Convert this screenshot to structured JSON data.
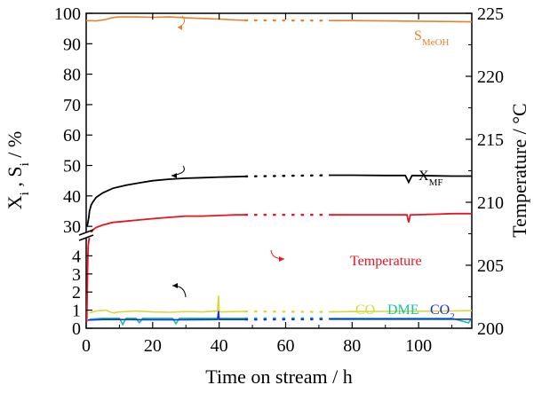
{
  "chart_data": {
    "type": "line",
    "xlabel": "Time on stream / h",
    "ylabel_left": {
      "base": "X",
      "sub1": "i",
      "sep": " , ",
      "base2": "S",
      "sub2": "i",
      "unit": " / %"
    },
    "ylabel_right": "Temperature / °C",
    "x_ticks": [
      "0",
      "20",
      "40",
      "60",
      "80",
      "100"
    ],
    "x_range": [
      0,
      116
    ],
    "left_axis_upper": {
      "range": [
        28,
        100
      ],
      "ticks": [
        "30",
        "40",
        "50",
        "60",
        "70",
        "80",
        "90",
        "100"
      ]
    },
    "left_axis_lower": {
      "range": [
        0,
        5
      ],
      "ticks": [
        "0",
        "1",
        "2",
        "3",
        "4"
      ]
    },
    "right_axis": {
      "range": [
        200,
        225
      ],
      "ticks": [
        "200",
        "205",
        "210",
        "215",
        "220",
        "225"
      ]
    },
    "gap_x": [
      48,
      73
    ],
    "series": [
      {
        "name_base": "S",
        "name_sub": "MeOH",
        "color": "#E8822A",
        "axis": "left",
        "x": [
          0,
          1,
          3,
          6,
          8,
          10,
          15,
          20,
          25,
          30,
          35,
          40,
          45,
          48,
          73,
          80,
          90,
          100,
          110,
          116
        ],
        "y": [
          97.5,
          97.6,
          97.5,
          98.0,
          98.6,
          98.8,
          98.8,
          98.7,
          98.8,
          98.5,
          98.3,
          98.1,
          97.8,
          97.7,
          97.6,
          97.6,
          97.5,
          97.4,
          97.3,
          97.2
        ]
      },
      {
        "name_base": "X",
        "name_sub": "MF",
        "color": "#000000",
        "axis": "left",
        "x": [
          0.3,
          0.8,
          1,
          1.5,
          2,
          3,
          5,
          8,
          12,
          16,
          20,
          25,
          30,
          35,
          40,
          45,
          48,
          73,
          80,
          90,
          96,
          97,
          98,
          105,
          110,
          116
        ],
        "y": [
          30,
          33,
          35,
          37,
          38,
          39.5,
          41,
          42.5,
          43.5,
          44.3,
          45,
          45.5,
          45.8,
          46,
          46.2,
          46.3,
          46.4,
          46.8,
          46.8,
          46.7,
          46.7,
          44.5,
          46.7,
          46.6,
          46.5,
          46.5
        ]
      },
      {
        "name_base": "Temperature",
        "name_sub": "",
        "color": "#E8141E",
        "axis": "right",
        "x": [
          0.2,
          0.4,
          0.6,
          1,
          1.5,
          2,
          3,
          5,
          8,
          12,
          16,
          20,
          25,
          30,
          35,
          40,
          45,
          48,
          73,
          80,
          90,
          96.5,
          97,
          97.5,
          105,
          110,
          116
        ],
        "y": [
          200.5,
          204.5,
          206.5,
          207.3,
          207.6,
          207.8,
          208.0,
          208.2,
          208.4,
          208.5,
          208.6,
          208.7,
          208.8,
          208.9,
          208.9,
          208.95,
          209.0,
          209.0,
          209.0,
          209.0,
          209.0,
          209.0,
          208.4,
          209.0,
          209.05,
          209.1,
          209.1
        ]
      },
      {
        "name_base": "CO",
        "name_sub": "",
        "color": "#D8D83A",
        "axis": "left",
        "x": [
          1,
          3,
          6,
          8,
          10,
          15,
          20,
          25,
          30,
          35,
          39.5,
          39.8,
          40,
          40.3,
          44,
          48,
          73,
          80,
          90,
          100,
          110,
          116
        ],
        "y": [
          0.85,
          0.95,
          1.0,
          0.85,
          0.9,
          0.95,
          0.9,
          0.88,
          0.92,
          0.9,
          0.95,
          1.8,
          0.95,
          0.9,
          0.92,
          0.93,
          0.9,
          0.92,
          0.93,
          0.94,
          0.95,
          0.97
        ]
      },
      {
        "name_base": "DME",
        "name_sub": "",
        "color": "#19C2A0",
        "axis": "left",
        "x": [
          1,
          5,
          10,
          11,
          12,
          15,
          16,
          17,
          20,
          26,
          27,
          28,
          30,
          35,
          40,
          45,
          48,
          73,
          80,
          90,
          100,
          110,
          115,
          116
        ],
        "y": [
          0.5,
          0.55,
          0.55,
          0.2,
          0.55,
          0.55,
          0.3,
          0.55,
          0.55,
          0.55,
          0.25,
          0.55,
          0.55,
          0.55,
          0.55,
          0.55,
          0.55,
          0.55,
          0.55,
          0.55,
          0.55,
          0.55,
          0.3,
          0.55
        ]
      },
      {
        "name_base": "CO",
        "name_sub": "2",
        "color": "#1A2FE0",
        "axis": "left",
        "x": [
          0.5,
          5,
          10,
          20,
          30,
          39.5,
          39.8,
          40,
          40.3,
          48,
          73,
          80,
          90,
          100,
          110,
          116
        ],
        "y": [
          0.45,
          0.48,
          0.48,
          0.47,
          0.47,
          0.48,
          0.95,
          0.48,
          0.48,
          0.48,
          0.5,
          0.5,
          0.5,
          0.5,
          0.5,
          0.5
        ]
      }
    ]
  }
}
